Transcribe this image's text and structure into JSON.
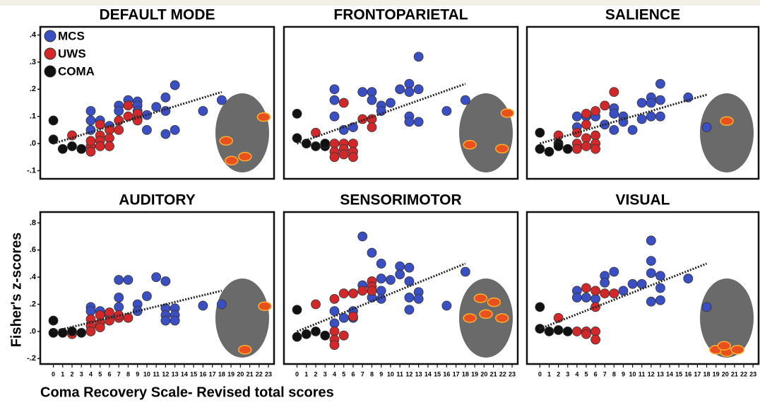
{
  "y_label": "Fisher's z-scores",
  "x_label": "Coma Recovery Scale- Revised total scores",
  "chart_data": [
    {
      "type": "scatter",
      "title": "DEFAULT MODE",
      "xlim": [
        -1.4,
        23.6
      ],
      "ylim": [
        -0.13,
        0.43
      ],
      "yticks": [
        {
          "value": 0.4,
          "label": ".4"
        },
        {
          "value": 0.3,
          "label": ".3"
        },
        {
          "value": 0.2,
          "label": ".2"
        },
        {
          "value": 0.1,
          "label": ".1"
        },
        {
          "value": 0,
          "label": ".0"
        },
        {
          "value": -0.1,
          "label": "-.1"
        }
      ],
      "legend": "upper left",
      "series": [
        {
          "name": "MCS",
          "color": "#3b4fc4",
          "x": [
            4,
            4,
            4,
            5,
            6,
            7,
            7,
            8,
            9,
            9,
            9,
            9,
            10,
            10,
            11,
            12,
            12,
            12,
            13,
            13,
            16,
            18
          ],
          "values": [
            0.12,
            0.085,
            0.05,
            0.085,
            0.065,
            0.14,
            0.12,
            0.16,
            0.155,
            0.14,
            0.12,
            0.09,
            0.105,
            0.05,
            0.135,
            0.17,
            0.12,
            0.035,
            0.215,
            0.05,
            0.12,
            0.16
          ]
        },
        {
          "name": "UWS",
          "color": "#d3282a",
          "x": [
            2,
            4,
            4,
            4,
            5,
            5,
            5,
            5,
            6,
            6,
            6,
            7,
            7,
            8,
            8,
            9,
            9
          ],
          "values": [
            0.03,
            -0.01,
            -0.03,
            0.01,
            0.07,
            0.03,
            0.01,
            -0.01,
            0.05,
            0.02,
            -0.01,
            0.085,
            0.05,
            0.14,
            0.1,
            0.11,
            0.085
          ]
        },
        {
          "name": "COMA",
          "color": "#111111",
          "x": [
            0,
            0,
            1,
            2,
            3
          ],
          "values": [
            0.085,
            0.015,
            -0.02,
            -0.01,
            -0.02
          ]
        }
      ],
      "trend_line": {
        "x": [
          0,
          18
        ],
        "values": [
          0,
          0.19
        ]
      }
    },
    {
      "type": "scatter",
      "title": "FRONTOPARIETAL",
      "xlim": [
        -1.4,
        23.6
      ],
      "ylim": [
        -0.13,
        0.43
      ],
      "series": [
        {
          "color": "#3b4fc4",
          "x": [
            4,
            4,
            4,
            5,
            6,
            7,
            8,
            8,
            9,
            9,
            10,
            11,
            12,
            12,
            12,
            12,
            13,
            13,
            13,
            16,
            18
          ],
          "values": [
            0.2,
            0.16,
            0.1,
            0.05,
            0.06,
            0.19,
            0.19,
            0.16,
            0.14,
            0.12,
            0.15,
            0.2,
            0.22,
            0.19,
            0.1,
            0.08,
            0.32,
            0.2,
            0.08,
            0.12,
            0.16
          ]
        },
        {
          "color": "#d3282a",
          "x": [
            2,
            4,
            4,
            4,
            5,
            5,
            5,
            5,
            6,
            6,
            6,
            7,
            8,
            8
          ],
          "values": [
            0.04,
            0,
            -0.03,
            -0.05,
            0.15,
            0,
            -0.02,
            -0.04,
            0,
            -0.03,
            -0.05,
            0.09,
            0.09,
            0.06
          ]
        },
        {
          "color": "#111111",
          "x": [
            0,
            0,
            1,
            2,
            3,
            3
          ],
          "values": [
            0.11,
            0.02,
            0,
            -0.01,
            -0.01,
            0
          ]
        }
      ],
      "trend_line": {
        "x": [
          0,
          18
        ],
        "values": [
          0,
          0.22
        ]
      }
    },
    {
      "type": "scatter",
      "title": "SALIENCE",
      "xlim": [
        -1.4,
        23.6
      ],
      "ylim": [
        -0.13,
        0.43
      ],
      "series": [
        {
          "color": "#3b4fc4",
          "x": [
            4,
            4,
            5,
            6,
            7,
            8,
            8,
            8,
            9,
            9,
            10,
            11,
            11,
            12,
            12,
            12,
            13,
            13,
            13,
            16,
            18
          ],
          "values": [
            0.1,
            0.06,
            0.1,
            0.1,
            0.07,
            0.13,
            0.11,
            0.05,
            0.1,
            0.08,
            0.05,
            0.15,
            0.09,
            0.17,
            0.15,
            0.1,
            0.22,
            0.16,
            0.1,
            0.17,
            0.06
          ]
        },
        {
          "color": "#d3282a",
          "x": [
            2,
            4,
            4,
            4,
            5,
            5,
            5,
            5,
            6,
            6,
            6,
            6,
            7,
            8
          ],
          "values": [
            0.03,
            0.04,
            0,
            -0.02,
            0.11,
            0.07,
            0.02,
            -0.01,
            0.12,
            0.03,
            0,
            -0.02,
            0.14,
            0.19
          ]
        },
        {
          "color": "#111111",
          "x": [
            0,
            0,
            1,
            2,
            2,
            3
          ],
          "values": [
            0.04,
            -0.02,
            -0.03,
            0,
            -0.01,
            -0.02
          ]
        }
      ],
      "trend_line": {
        "x": [
          0,
          18
        ],
        "values": [
          0,
          0.18
        ]
      }
    },
    {
      "type": "scatter",
      "title": "AUDITORY",
      "xlim": [
        -1.4,
        23.6
      ],
      "ylim": [
        -0.24,
        0.88
      ],
      "yticks": [
        {
          "value": 0.8,
          "label": ".8"
        },
        {
          "value": 0.6,
          "label": ".6"
        },
        {
          "value": 0.4,
          "label": ".4"
        },
        {
          "value": 0.2,
          "label": ".2"
        },
        {
          "value": 0,
          "label": ".0"
        },
        {
          "value": -0.2,
          "label": "-.2"
        }
      ],
      "xticks": [
        0,
        1,
        2,
        3,
        4,
        5,
        6,
        7,
        8,
        9,
        10,
        11,
        12,
        13,
        14,
        15,
        16,
        17,
        18,
        19,
        20,
        21,
        22,
        23
      ],
      "series": [
        {
          "color": "#3b4fc4",
          "x": [
            4,
            4,
            5,
            6,
            7,
            7,
            7,
            8,
            9,
            9,
            10,
            11,
            12,
            12,
            12,
            12,
            13,
            13,
            13,
            16,
            18
          ],
          "values": [
            0.18,
            0.15,
            0.15,
            0.12,
            0.38,
            0.25,
            0.18,
            0.38,
            0.2,
            0.15,
            0.26,
            0.4,
            0.37,
            0.17,
            0.12,
            0.08,
            0.17,
            0.12,
            0.08,
            0.19,
            0.2
          ]
        },
        {
          "color": "#d3282a",
          "x": [
            2,
            4,
            4,
            4,
            5,
            5,
            5,
            6,
            6,
            7,
            7,
            8
          ],
          "values": [
            -0.02,
            0.09,
            0.04,
            0,
            0.12,
            0.06,
            0.03,
            0.14,
            0.08,
            0.1,
            0.12,
            0.1
          ]
        },
        {
          "color": "#111111",
          "x": [
            0,
            0,
            1,
            2,
            3
          ],
          "values": [
            0.08,
            -0.01,
            -0.01,
            0,
            -0.01
          ]
        }
      ],
      "trend_line": {
        "x": [
          0,
          18
        ],
        "values": [
          0,
          0.3
        ]
      }
    },
    {
      "type": "scatter",
      "title": "SENSORIMOTOR",
      "xlim": [
        -1.4,
        23.6
      ],
      "ylim": [
        -0.24,
        0.88
      ],
      "xticks": [
        0,
        1,
        2,
        3,
        4,
        5,
        6,
        7,
        8,
        9,
        10,
        11,
        12,
        13,
        14,
        15,
        16,
        17,
        18,
        19,
        20,
        21,
        22,
        23
      ],
      "series": [
        {
          "color": "#3b4fc4",
          "x": [
            4,
            4,
            5,
            6,
            6,
            7,
            7,
            8,
            8,
            9,
            9,
            9,
            9,
            10,
            11,
            11,
            12,
            12,
            12,
            12,
            13,
            13,
            16,
            18
          ],
          "values": [
            0.15,
            0.06,
            0.1,
            0.15,
            0.1,
            0.7,
            0.34,
            0.58,
            0.25,
            0.5,
            0.39,
            0.3,
            0.24,
            0.38,
            0.48,
            0.42,
            0.47,
            0.37,
            0.25,
            0.16,
            0.29,
            0.24,
            0.19,
            0.44
          ]
        },
        {
          "color": "#d3282a",
          "x": [
            2,
            4,
            4,
            4,
            4,
            5,
            5,
            6,
            6,
            7,
            8,
            8,
            8
          ],
          "values": [
            0.2,
            0.24,
            0,
            -0.06,
            -0.1,
            0.28,
            -0.03,
            0.28,
            0.11,
            0.3,
            0.37,
            0.33,
            0.3
          ]
        },
        {
          "color": "#111111",
          "x": [
            0,
            0,
            1,
            2,
            3
          ],
          "values": [
            0.16,
            -0.04,
            -0.02,
            0,
            -0.03
          ]
        }
      ],
      "trend_line": {
        "x": [
          0,
          18
        ],
        "values": [
          0,
          0.5
        ]
      }
    },
    {
      "type": "scatter",
      "title": "VISUAL",
      "xlim": [
        -1.4,
        23.6
      ],
      "ylim": [
        -0.24,
        0.88
      ],
      "xticks": [
        0,
        1,
        2,
        3,
        4,
        5,
        6,
        7,
        8,
        9,
        10,
        11,
        12,
        13,
        14,
        15,
        16,
        17,
        18,
        19,
        20,
        21,
        22,
        23
      ],
      "series": [
        {
          "color": "#3b4fc4",
          "x": [
            4,
            4,
            5,
            6,
            7,
            7,
            8,
            9,
            10,
            11,
            12,
            12,
            12,
            12,
            13,
            13,
            13,
            16,
            18
          ],
          "values": [
            0.3,
            0.25,
            0.25,
            0.24,
            0.41,
            0.36,
            0.44,
            0.3,
            0.35,
            0.35,
            0.67,
            0.52,
            0.43,
            0.22,
            0.41,
            0.32,
            0.23,
            0.39,
            0.18
          ]
        },
        {
          "color": "#d3282a",
          "x": [
            2,
            4,
            5,
            5,
            5,
            6,
            6,
            6,
            6,
            7,
            8
          ],
          "values": [
            0.1,
            0,
            0.32,
            0,
            -0.02,
            0.3,
            0.18,
            0,
            -0.06,
            0.28,
            0.28
          ]
        },
        {
          "color": "#111111",
          "x": [
            0,
            0,
            1,
            2,
            3
          ],
          "values": [
            0.18,
            0.02,
            0,
            0.01,
            0
          ]
        }
      ],
      "trend_line": {
        "x": [
          0,
          18
        ],
        "values": [
          0.02,
          0.5
        ]
      }
    }
  ]
}
